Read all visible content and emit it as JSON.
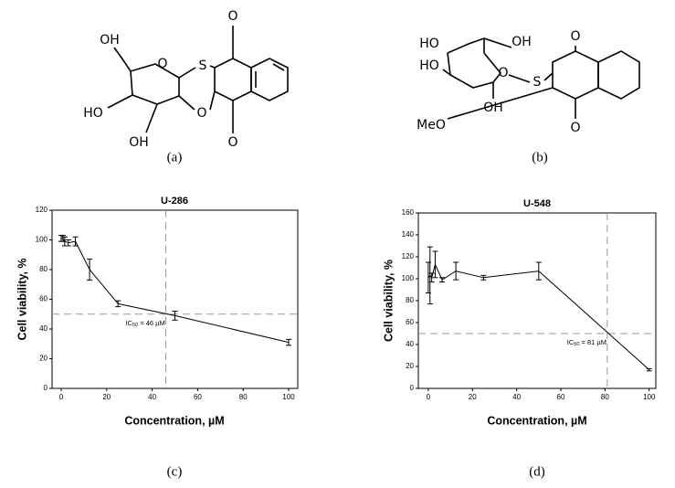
{
  "structures": [
    {
      "label": "(a)",
      "atoms": [
        "OH",
        "O",
        "S",
        "O",
        "HO",
        "O",
        "OH",
        "O"
      ]
    },
    {
      "label": "(b)",
      "atoms": [
        "OH",
        "HO",
        "O",
        "HO",
        "S",
        "O",
        "OH",
        "MeO",
        "O"
      ]
    }
  ],
  "chart_data": [
    {
      "type": "line",
      "panel": "(c)",
      "title": "U-286",
      "x_label": "Concentration, µM",
      "y_label": "Cell viability, %",
      "x": [
        0,
        0.78,
        1.56,
        3.125,
        6.25,
        12.5,
        25,
        50,
        100
      ],
      "values": [
        101,
        101,
        99,
        98,
        99,
        80,
        57,
        49,
        31
      ],
      "errors": [
        2,
        2,
        3,
        2,
        3,
        7,
        2,
        3,
        2
      ],
      "color": "#000000",
      "xlim": [
        -4,
        104
      ],
      "ylim": [
        0,
        120
      ],
      "xticks": [
        0,
        20,
        40,
        60,
        80,
        100
      ],
      "yticks": [
        0,
        20,
        40,
        60,
        80,
        100,
        120
      ],
      "reference_lines": {
        "x": 46,
        "y": 50
      },
      "annotation": {
        "main": "IC",
        "sub": "50",
        "rest": " = 46 µM"
      }
    },
    {
      "type": "line",
      "panel": "(d)",
      "title": "U-548",
      "x_label": "Concentration, µM",
      "y_label": "Cell viability, %",
      "x": [
        0,
        0.78,
        1.56,
        3.125,
        6.25,
        12.5,
        25,
        50,
        100
      ],
      "values": [
        101,
        103,
        101,
        113,
        99,
        107,
        101,
        107,
        17
      ],
      "errors": [
        14,
        26,
        4,
        12,
        2,
        8,
        2,
        8,
        1
      ],
      "color": "#000000",
      "xlim": [
        -4.5,
        103
      ],
      "ylim": [
        0,
        160
      ],
      "xticks": [
        0,
        20,
        40,
        60,
        80,
        100
      ],
      "yticks": [
        0,
        20,
        40,
        60,
        80,
        100,
        120,
        140,
        160
      ],
      "reference_lines": {
        "x": 81,
        "y": 50
      },
      "annotation": {
        "main": "IC",
        "sub": "50",
        "rest": " = 81 µM"
      }
    }
  ]
}
